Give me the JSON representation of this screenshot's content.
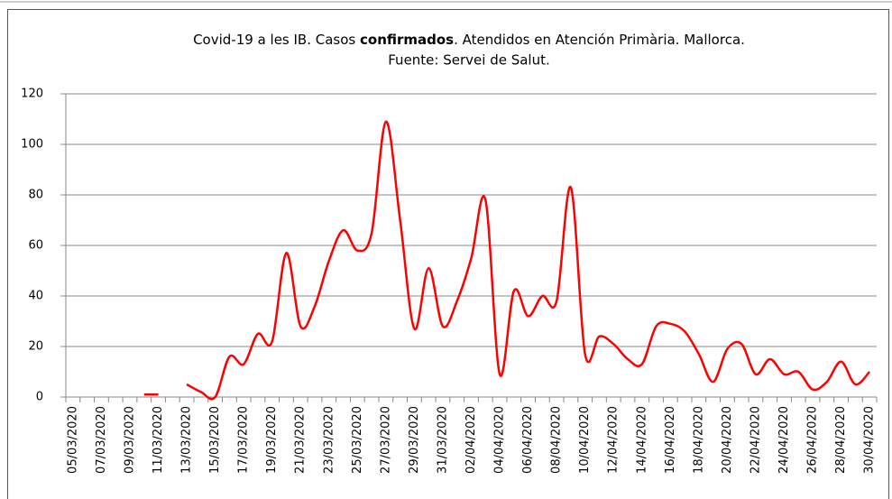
{
  "chart_data": {
    "type": "line",
    "title": [
      "Covid-19  a les IB. Casos ",
      "confirmados",
      ". Atendidos en Atención Primària. Mallorca."
    ],
    "subtitle": "Fuente: Servei de Salut.",
    "categories": [
      "05/03/2020",
      null,
      "07/03/2020",
      null,
      "09/03/2020",
      null,
      "11/03/2020",
      null,
      "13/03/2020",
      null,
      "15/03/2020",
      null,
      "17/03/2020",
      null,
      "19/03/2020",
      null,
      "21/03/2020",
      null,
      "23/03/2020",
      null,
      "25/03/2020",
      null,
      "27/03/2020",
      null,
      "29/03/2020",
      null,
      "31/03/2020",
      null,
      "02/04/2020",
      null,
      "04/04/2020",
      null,
      "06/04/2020",
      null,
      "08/04/2020",
      null,
      "10/04/2020",
      null,
      "12/04/2020",
      null,
      "14/04/2020",
      null,
      "16/04/2020",
      null,
      "18/04/2020",
      null,
      "20/04/2020",
      null,
      "22/04/2020",
      null,
      "24/04/2020",
      null,
      "26/04/2020",
      null,
      "28/04/2020",
      null,
      "30/04/2020"
    ],
    "series": [
      {
        "name": "Casos confirmados",
        "color": "#ff0000",
        "values": [
          null,
          null,
          null,
          null,
          null,
          1,
          1,
          null,
          5,
          2,
          0,
          16,
          13,
          25,
          22,
          57,
          28,
          36,
          54,
          66,
          58,
          65,
          109,
          70,
          27,
          51,
          28,
          38,
          55,
          78,
          9,
          42,
          32,
          40,
          38,
          83,
          17,
          24,
          21,
          15,
          13,
          28,
          29,
          26,
          17,
          6,
          19,
          21,
          9,
          15,
          9,
          10,
          3,
          6,
          14,
          5,
          10
        ]
      }
    ],
    "ylim": [
      0,
      120
    ],
    "yticks": [
      0,
      20,
      40,
      60,
      80,
      100,
      120
    ],
    "grid": true
  }
}
